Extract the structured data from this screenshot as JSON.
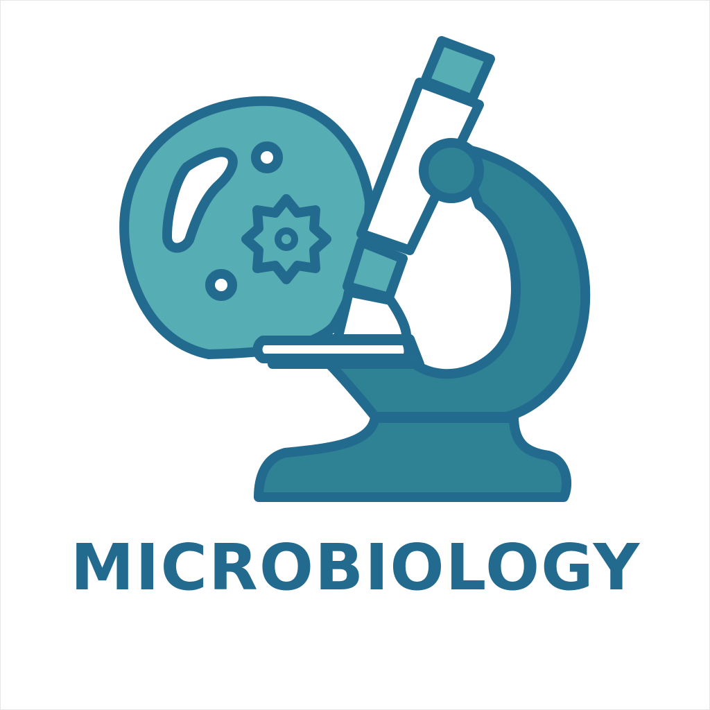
{
  "logo": {
    "title": "MICROBIOLOGY",
    "icon": "microscope-with-cell-icon",
    "colors": {
      "outline": "#236a8f",
      "cell_fill": "#56adb3",
      "body_fill": "#2f8294",
      "eyepiece_fill": "#56adb3",
      "highlight": "#ffffff"
    }
  }
}
